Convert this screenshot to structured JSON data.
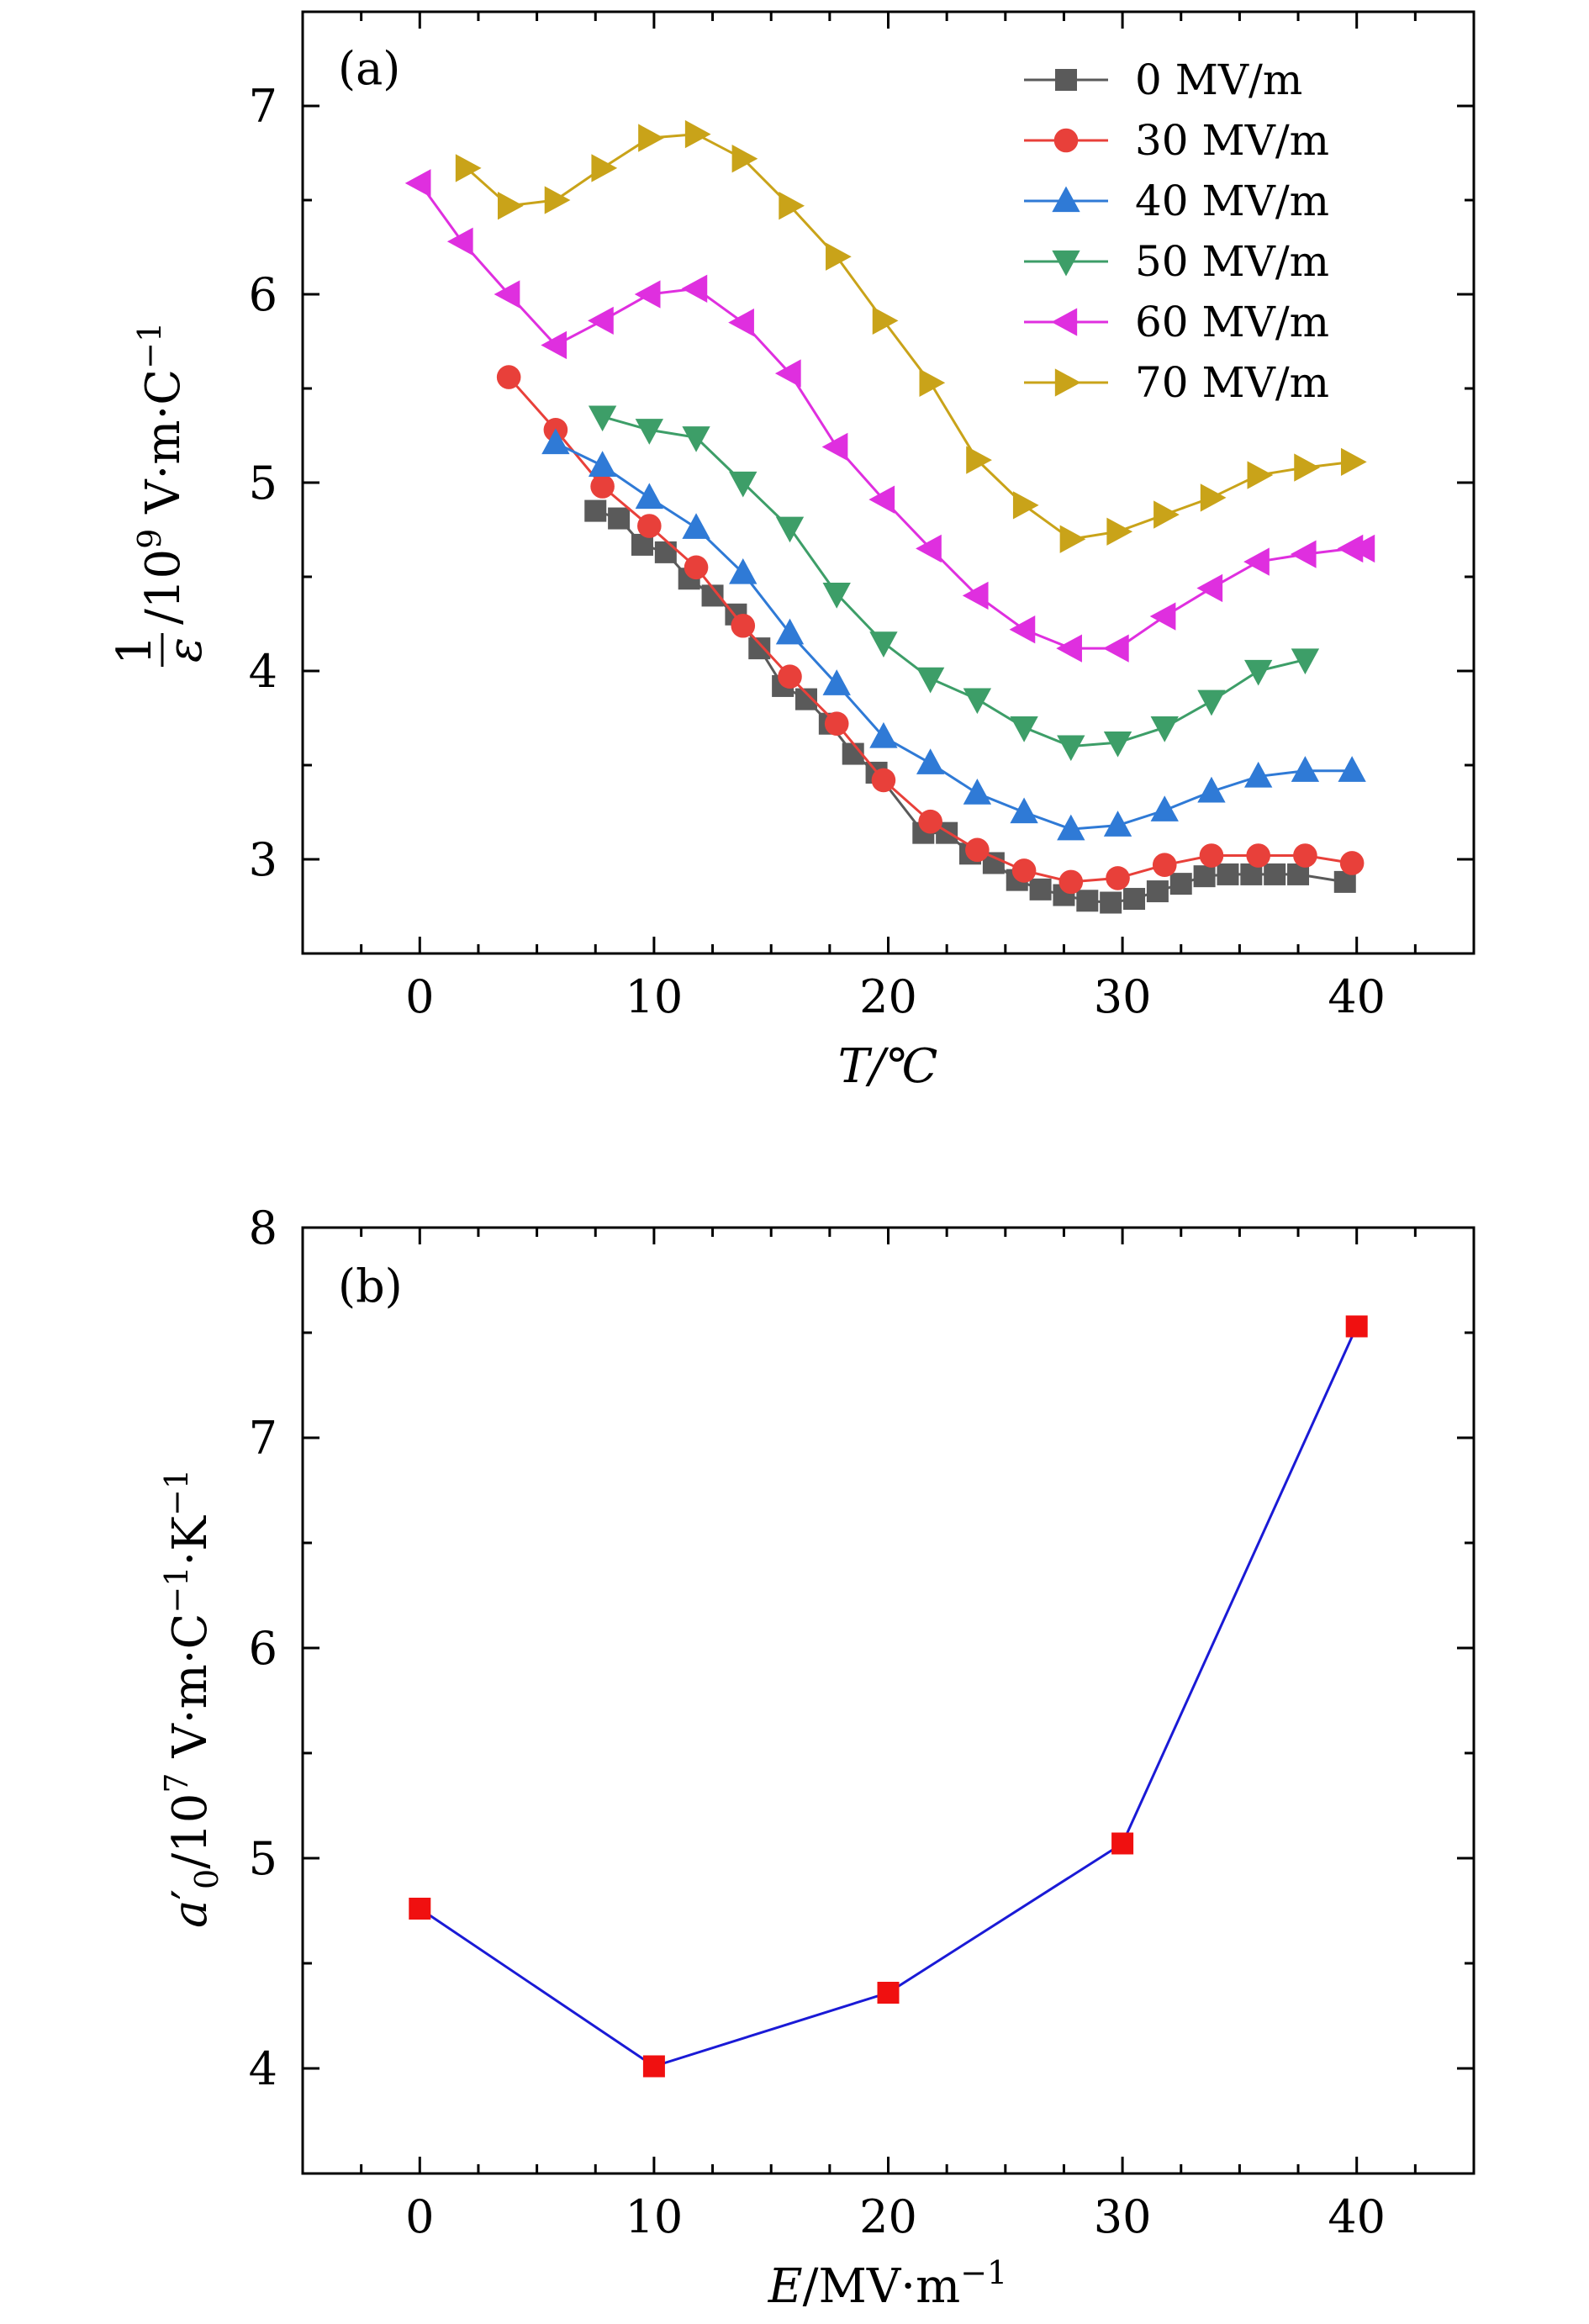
{
  "chart_data": [
    {
      "type": "line",
      "panel_label": "(a)",
      "xlabel": "T/℃",
      "ylabel_parts": {
        "frac_num": "1",
        "frac_den": "ε",
        "slash_base": "/10",
        "exp": "9",
        "unit": " V·m·C",
        "unit_exp": "−1"
      },
      "xlim": [
        -5,
        45
      ],
      "ylim": [
        2.5,
        7.5
      ],
      "xticks": [
        0,
        10,
        20,
        30,
        40
      ],
      "yticks": [
        3,
        4,
        5,
        6,
        7
      ],
      "legend_position": "top-right",
      "series": [
        {
          "name": "0 MV/m",
          "color": "#5a5a5a",
          "marker": "square",
          "points": [
            [
              7.5,
              4.85
            ],
            [
              8.5,
              4.81
            ],
            [
              9.5,
              4.67
            ],
            [
              10.5,
              4.63
            ],
            [
              11.5,
              4.49
            ],
            [
              12.5,
              4.4
            ],
            [
              13.5,
              4.3
            ],
            [
              14.5,
              4.12
            ],
            [
              15.5,
              3.92
            ],
            [
              16.5,
              3.85
            ],
            [
              17.5,
              3.72
            ],
            [
              18.5,
              3.56
            ],
            [
              19.5,
              3.46
            ],
            [
              21.5,
              3.14
            ],
            [
              22.5,
              3.14
            ],
            [
              23.5,
              3.03
            ],
            [
              24.5,
              2.98
            ],
            [
              25.5,
              2.89
            ],
            [
              26.5,
              2.84
            ],
            [
              27.5,
              2.81
            ],
            [
              28.5,
              2.78
            ],
            [
              29.5,
              2.77
            ],
            [
              30.5,
              2.79
            ],
            [
              31.5,
              2.83
            ],
            [
              32.5,
              2.87
            ],
            [
              33.5,
              2.91
            ],
            [
              34.5,
              2.92
            ],
            [
              35.5,
              2.92
            ],
            [
              36.5,
              2.92
            ],
            [
              37.5,
              2.92
            ],
            [
              39.5,
              2.88
            ]
          ]
        },
        {
          "name": "30 MV/m",
          "color": "#e8403a",
          "marker": "circle",
          "points": [
            [
              3.8,
              5.56
            ],
            [
              5.8,
              5.28
            ],
            [
              7.8,
              4.98
            ],
            [
              9.8,
              4.77
            ],
            [
              11.8,
              4.55
            ],
            [
              13.8,
              4.24
            ],
            [
              15.8,
              3.97
            ],
            [
              17.8,
              3.72
            ],
            [
              19.8,
              3.42
            ],
            [
              21.8,
              3.2
            ],
            [
              23.8,
              3.05
            ],
            [
              25.8,
              2.94
            ],
            [
              27.8,
              2.88
            ],
            [
              29.8,
              2.9
            ],
            [
              31.8,
              2.97
            ],
            [
              33.8,
              3.02
            ],
            [
              35.8,
              3.02
            ],
            [
              37.8,
              3.02
            ],
            [
              39.8,
              2.98
            ]
          ]
        },
        {
          "name": "40 MV/m",
          "color": "#2f7ad6",
          "marker": "triangle-up",
          "points": [
            [
              5.8,
              5.21
            ],
            [
              7.8,
              5.09
            ],
            [
              9.8,
              4.92
            ],
            [
              11.8,
              4.76
            ],
            [
              13.8,
              4.52
            ],
            [
              15.8,
              4.2
            ],
            [
              17.8,
              3.93
            ],
            [
              19.8,
              3.65
            ],
            [
              21.8,
              3.51
            ],
            [
              23.8,
              3.35
            ],
            [
              25.8,
              3.25
            ],
            [
              27.8,
              3.16
            ],
            [
              29.8,
              3.18
            ],
            [
              31.8,
              3.26
            ],
            [
              33.8,
              3.36
            ],
            [
              35.8,
              3.44
            ],
            [
              37.8,
              3.47
            ],
            [
              39.8,
              3.47
            ]
          ]
        },
        {
          "name": "50 MV/m",
          "color": "#3d9e68",
          "marker": "triangle-down",
          "points": [
            [
              7.8,
              5.35
            ],
            [
              9.8,
              5.28
            ],
            [
              11.8,
              5.24
            ],
            [
              13.8,
              5.0
            ],
            [
              15.8,
              4.76
            ],
            [
              17.8,
              4.41
            ],
            [
              19.8,
              4.15
            ],
            [
              21.8,
              3.96
            ],
            [
              23.8,
              3.85
            ],
            [
              25.8,
              3.7
            ],
            [
              27.8,
              3.6
            ],
            [
              29.8,
              3.62
            ],
            [
              31.8,
              3.7
            ],
            [
              33.8,
              3.84
            ],
            [
              35.8,
              4.0
            ],
            [
              37.8,
              4.06
            ]
          ]
        },
        {
          "name": "60 MV/m",
          "color": "#df2fdf",
          "marker": "triangle-left",
          "points": [
            [
              0,
              6.59
            ],
            [
              1.8,
              6.28
            ],
            [
              3.8,
              6.0
            ],
            [
              5.8,
              5.73
            ],
            [
              7.8,
              5.86
            ],
            [
              9.8,
              6.0
            ],
            [
              11.8,
              6.03
            ],
            [
              13.8,
              5.85
            ],
            [
              15.8,
              5.58
            ],
            [
              17.8,
              5.19
            ],
            [
              19.8,
              4.91
            ],
            [
              21.8,
              4.65
            ],
            [
              23.8,
              4.4
            ],
            [
              25.8,
              4.22
            ],
            [
              27.8,
              4.12
            ],
            [
              29.8,
              4.12
            ],
            [
              31.8,
              4.29
            ],
            [
              33.8,
              4.44
            ],
            [
              35.8,
              4.58
            ],
            [
              37.8,
              4.62
            ],
            [
              39.8,
              4.65
            ],
            [
              40.3,
              4.65
            ]
          ]
        },
        {
          "name": "70 MV/m",
          "color": "#c9a319",
          "marker": "triangle-right",
          "points": [
            [
              2,
              6.67
            ],
            [
              3.8,
              6.47
            ],
            [
              5.8,
              6.5
            ],
            [
              7.8,
              6.67
            ],
            [
              9.8,
              6.83
            ],
            [
              11.8,
              6.85
            ],
            [
              13.8,
              6.72
            ],
            [
              15.8,
              6.47
            ],
            [
              17.8,
              6.2
            ],
            [
              19.8,
              5.86
            ],
            [
              21.8,
              5.53
            ],
            [
              23.8,
              5.12
            ],
            [
              25.8,
              4.88
            ],
            [
              27.8,
              4.7
            ],
            [
              29.8,
              4.74
            ],
            [
              31.8,
              4.83
            ],
            [
              33.8,
              4.92
            ],
            [
              35.8,
              5.04
            ],
            [
              37.8,
              5.08
            ],
            [
              39.8,
              5.11
            ]
          ]
        }
      ]
    },
    {
      "type": "line",
      "panel_label": "(b)",
      "xlabel_parts": {
        "base": "E/MV·m",
        "exp": "−1"
      },
      "ylabel_parts": {
        "sym": "a",
        "prime": "′",
        "sub": "0",
        "slash_base": "/10",
        "exp": "7",
        "unit": " V·m·C",
        "unit_exp": "−1",
        "unit2": "·K",
        "unit2_exp": "−1"
      },
      "xlim": [
        -5,
        45
      ],
      "ylim": [
        3.5,
        8
      ],
      "xticks": [
        0,
        10,
        20,
        30,
        40
      ],
      "yticks": [
        4,
        5,
        6,
        7,
        8
      ],
      "series": [
        {
          "color": "#1a1ad6",
          "marker_color": "#f01010",
          "marker": "square",
          "points": [
            [
              0,
              4.76
            ],
            [
              10,
              4.01
            ],
            [
              20,
              4.36
            ],
            [
              30,
              5.07
            ],
            [
              40,
              7.53
            ]
          ]
        }
      ]
    }
  ]
}
